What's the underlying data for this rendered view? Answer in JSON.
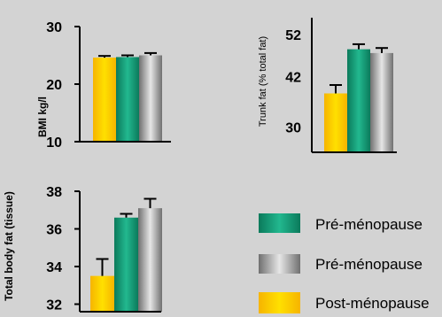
{
  "chart_data": [
    {
      "type": "bar",
      "ylabel": "BMI kg/l",
      "ylim": [
        10,
        30
      ],
      "yticks": [
        "10",
        "20",
        "30"
      ],
      "series": [
        {
          "name": "Post-ménopause",
          "values": [
            24.6
          ],
          "error": [
            0.3
          ]
        },
        {
          "name": "Pré-ménopause",
          "values": [
            24.7
          ],
          "error": [
            0.3
          ]
        },
        {
          "name": "Pré-ménopause",
          "values": [
            25.0
          ],
          "error": [
            0.4
          ]
        }
      ]
    },
    {
      "type": "bar",
      "ylabel": "Trunk fat (% total fat)",
      "ylim": [
        24,
        56
      ],
      "yticks": [
        "30",
        "42",
        "52"
      ],
      "series": [
        {
          "name": "Post-ménopause",
          "values": [
            38
          ],
          "error": [
            2
          ]
        },
        {
          "name": "Pré-ménopause",
          "values": [
            48.5
          ],
          "error": [
            1.2
          ]
        },
        {
          "name": "Pré-ménopause",
          "values": [
            47.6
          ],
          "error": [
            1.2
          ]
        }
      ]
    },
    {
      "type": "bar",
      "ylabel": "Total body fat (tissue)",
      "ylim": [
        31.6,
        38
      ],
      "yticks": [
        "32",
        "34",
        "36",
        "38"
      ],
      "series": [
        {
          "name": "Post-ménopause",
          "values": [
            33.5
          ],
          "error": [
            0.9
          ]
        },
        {
          "name": "Pré-ménopause",
          "values": [
            36.6
          ],
          "error": [
            0.2
          ]
        },
        {
          "name": "Pré-ménopause",
          "values": [
            37.1
          ],
          "error": [
            0.5
          ]
        }
      ]
    }
  ],
  "legend": {
    "placement": "bottom-right",
    "items": [
      {
        "label": "Pré-ménopause",
        "style": "green"
      },
      {
        "label": "Pré-ménopause",
        "style": "gray"
      },
      {
        "label": "Post-ménopause",
        "style": "yellow"
      }
    ]
  },
  "colors": {
    "background": "#d3d3d3",
    "yellow": "#fcd000",
    "yellow_edge": "#f2a800",
    "green": "#1aa37f",
    "green_edge": "#0b6e52",
    "gray": "#bdbdbd",
    "gray_edge": "#5a5a5a",
    "axis": "#000000"
  }
}
